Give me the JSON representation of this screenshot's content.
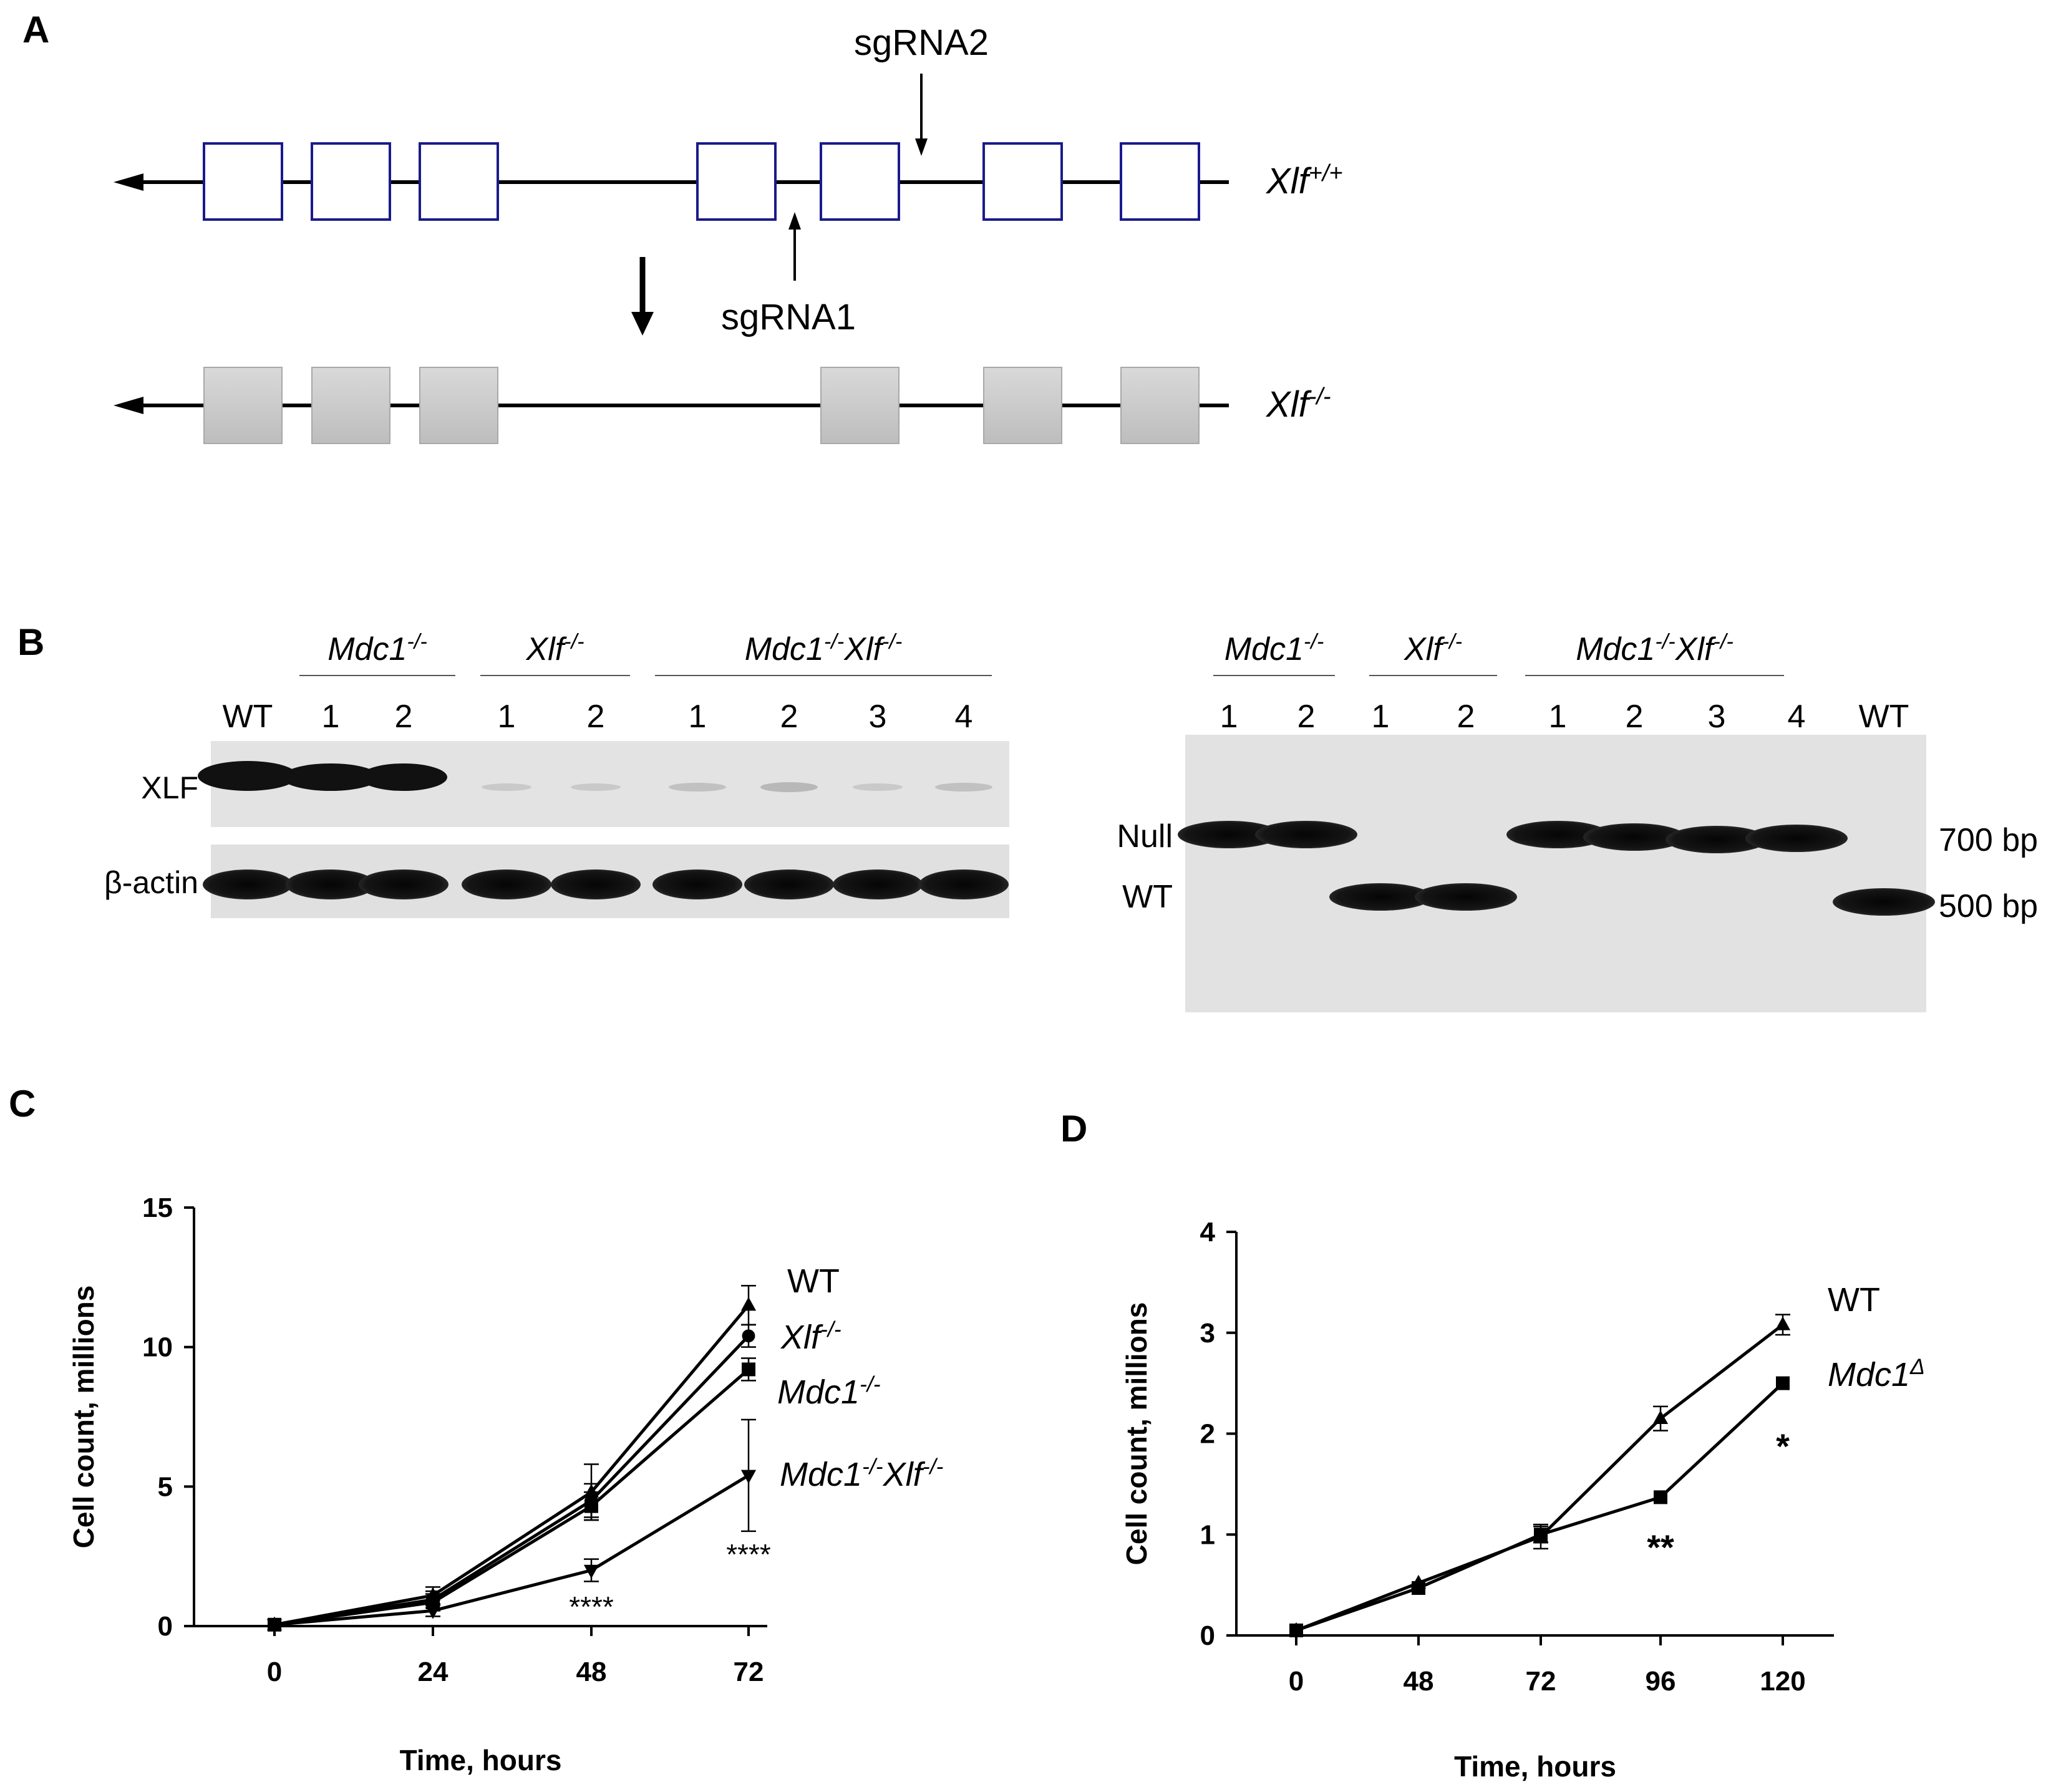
{
  "panel_a": {
    "label": "A",
    "sgrna2": "sgRNA2",
    "sgrna1": "sgRNA1",
    "allele_wt": {
      "base": "Xlf",
      "sup": "+/+"
    },
    "allele_ko": {
      "base": "Xlf",
      "sup": "-/-"
    }
  },
  "panel_b": {
    "label": "B",
    "western": {
      "groups": [
        {
          "base": "Mdc1",
          "sup": "-/-",
          "base2": "",
          "sup2": ""
        },
        {
          "base": "Xlf",
          "sup": "-/-",
          "base2": "",
          "sup2": ""
        },
        {
          "base": "Mdc1",
          "sup": "-/-",
          "base2": "Xlf",
          "sup2": "-/-"
        }
      ],
      "lanes": [
        "WT",
        "1",
        "2",
        "1",
        "2",
        "1",
        "2",
        "3",
        "4"
      ],
      "rows": [
        "XLF",
        "β-actin"
      ]
    },
    "gel": {
      "groups": [
        {
          "base": "Mdc1",
          "sup": "-/-",
          "base2": "",
          "sup2": ""
        },
        {
          "base": "Xlf",
          "sup": "-/-",
          "base2": "",
          "sup2": ""
        },
        {
          "base": "Mdc1",
          "sup": "-/-",
          "base2": "Xlf",
          "sup2": "-/-"
        }
      ],
      "lanes": [
        "1",
        "2",
        "1",
        "2",
        "1",
        "2",
        "3",
        "4",
        "WT"
      ],
      "band_labels": [
        "Null",
        "WT"
      ],
      "sizes": [
        "700 bp",
        "500 bp"
      ]
    }
  },
  "chart_data": [
    {
      "type": "line",
      "panel": "C",
      "xlabel": "Time, hours",
      "ylabel": "Cell count, millions",
      "x": [
        0,
        24,
        48,
        72
      ],
      "xticks": [
        "0",
        "24",
        "48",
        "72"
      ],
      "yticks": [
        "0",
        "5",
        "10",
        "15"
      ],
      "ylim": [
        0,
        15
      ],
      "series": [
        {
          "name": "WT",
          "values": [
            0.05,
            1.1,
            4.8,
            11.5
          ],
          "err": [
            0.05,
            0.3,
            1.0,
            0.7
          ],
          "marker": "triangle-up"
        },
        {
          "name": "Xlf-/-",
          "values": [
            0.05,
            0.95,
            4.5,
            10.4
          ],
          "err": [
            0.05,
            0.3,
            0.6,
            0.4
          ],
          "marker": "circle"
        },
        {
          "name": "Mdc1-/-",
          "values": [
            0.05,
            0.85,
            4.3,
            9.2
          ],
          "err": [
            0.05,
            0.3,
            0.5,
            0.4
          ],
          "marker": "square"
        },
        {
          "name": "Mdc1-/-Xlf-/-",
          "values": [
            0.05,
            0.55,
            2.0,
            5.4
          ],
          "err": [
            0.05,
            0.2,
            0.4,
            2.0
          ],
          "marker": "triangle-down"
        }
      ],
      "legend_labels": [
        {
          "base": "WT",
          "sup": "",
          "base2": "",
          "sup2": ""
        },
        {
          "base": "Xlf",
          "sup": "-/-",
          "base2": "",
          "sup2": ""
        },
        {
          "base": "Mdc1",
          "sup": "-/-",
          "base2": "",
          "sup2": ""
        },
        {
          "base": "Mdc1",
          "sup": "-/-",
          "base2": "Xlf",
          "sup2": "-/-"
        }
      ],
      "annotations": [
        {
          "text": "****",
          "x": 48
        },
        {
          "text": "****",
          "x": 72
        }
      ]
    },
    {
      "type": "line",
      "panel": "D",
      "xlabel": "Time, hours",
      "ylabel": "Cell count, millions",
      "x": [
        0,
        48,
        72,
        96,
        120
      ],
      "xticks": [
        "0",
        "48",
        "72",
        "96",
        "120"
      ],
      "yticks": [
        "0",
        "1",
        "2",
        "3",
        "4"
      ],
      "ylim": [
        0,
        4
      ],
      "series": [
        {
          "name": "WT",
          "values": [
            0.05,
            0.52,
            0.98,
            2.15,
            3.08
          ],
          "err": [
            0.02,
            0.05,
            0.12,
            0.12,
            0.1
          ],
          "marker": "triangle-up"
        },
        {
          "name": "Mdc1Δ",
          "values": [
            0.05,
            0.47,
            1.0,
            1.37,
            2.5
          ],
          "err": [
            0.02,
            0.05,
            0.08,
            0.04,
            0.04
          ],
          "marker": "square"
        }
      ],
      "legend_labels": [
        {
          "base": "WT",
          "sup": ""
        },
        {
          "base": "Mdc1",
          "sup": "Δ"
        }
      ],
      "annotations": [
        {
          "text": "**",
          "x": 96
        },
        {
          "text": "*",
          "x": 120
        }
      ]
    }
  ]
}
